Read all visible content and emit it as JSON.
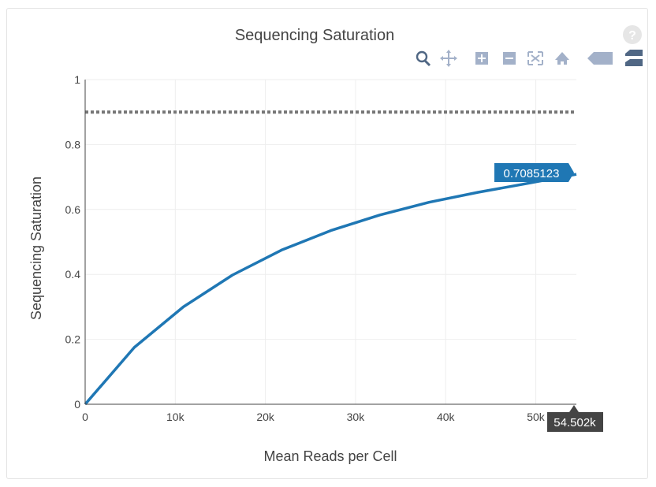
{
  "chart_data": {
    "type": "line",
    "title": "Sequencing Saturation",
    "xlabel": "Mean Reads per Cell",
    "ylabel": "Sequencing Saturation",
    "xlim": [
      0,
      54502
    ],
    "ylim": [
      0,
      1
    ],
    "x_ticks": [
      0,
      10000,
      20000,
      30000,
      40000,
      50000
    ],
    "x_tick_labels": [
      "0",
      "10k",
      "20k",
      "30k",
      "40k",
      "50k"
    ],
    "y_ticks": [
      0,
      0.2,
      0.4,
      0.6,
      0.8,
      1
    ],
    "y_tick_labels": [
      "0",
      "0.2",
      "0.4",
      "0.6",
      "0.8",
      "1"
    ],
    "grid": true,
    "series": [
      {
        "color": "#1f77b4",
        "x": [
          0,
          5450,
          10900,
          16350,
          21800,
          27250,
          32700,
          38150,
          43600,
          49050,
          54502
        ],
        "y": [
          0,
          0.175,
          0.3,
          0.398,
          0.475,
          0.535,
          0.583,
          0.622,
          0.653,
          0.68,
          0.7085123
        ]
      }
    ],
    "reference_line": {
      "y": 0.9,
      "style": "dotted",
      "color": "#777777"
    },
    "hover_y_label": "0.7085123",
    "hover_x_label": "54.502k"
  },
  "toolbar": {
    "icons": [
      "zoom-icon",
      "pan-icon",
      "zoom-in-icon",
      "zoom-out-icon",
      "autoscale-icon",
      "home-icon",
      "hover-closest-icon",
      "hover-compare-icon"
    ],
    "help_label": "?"
  }
}
